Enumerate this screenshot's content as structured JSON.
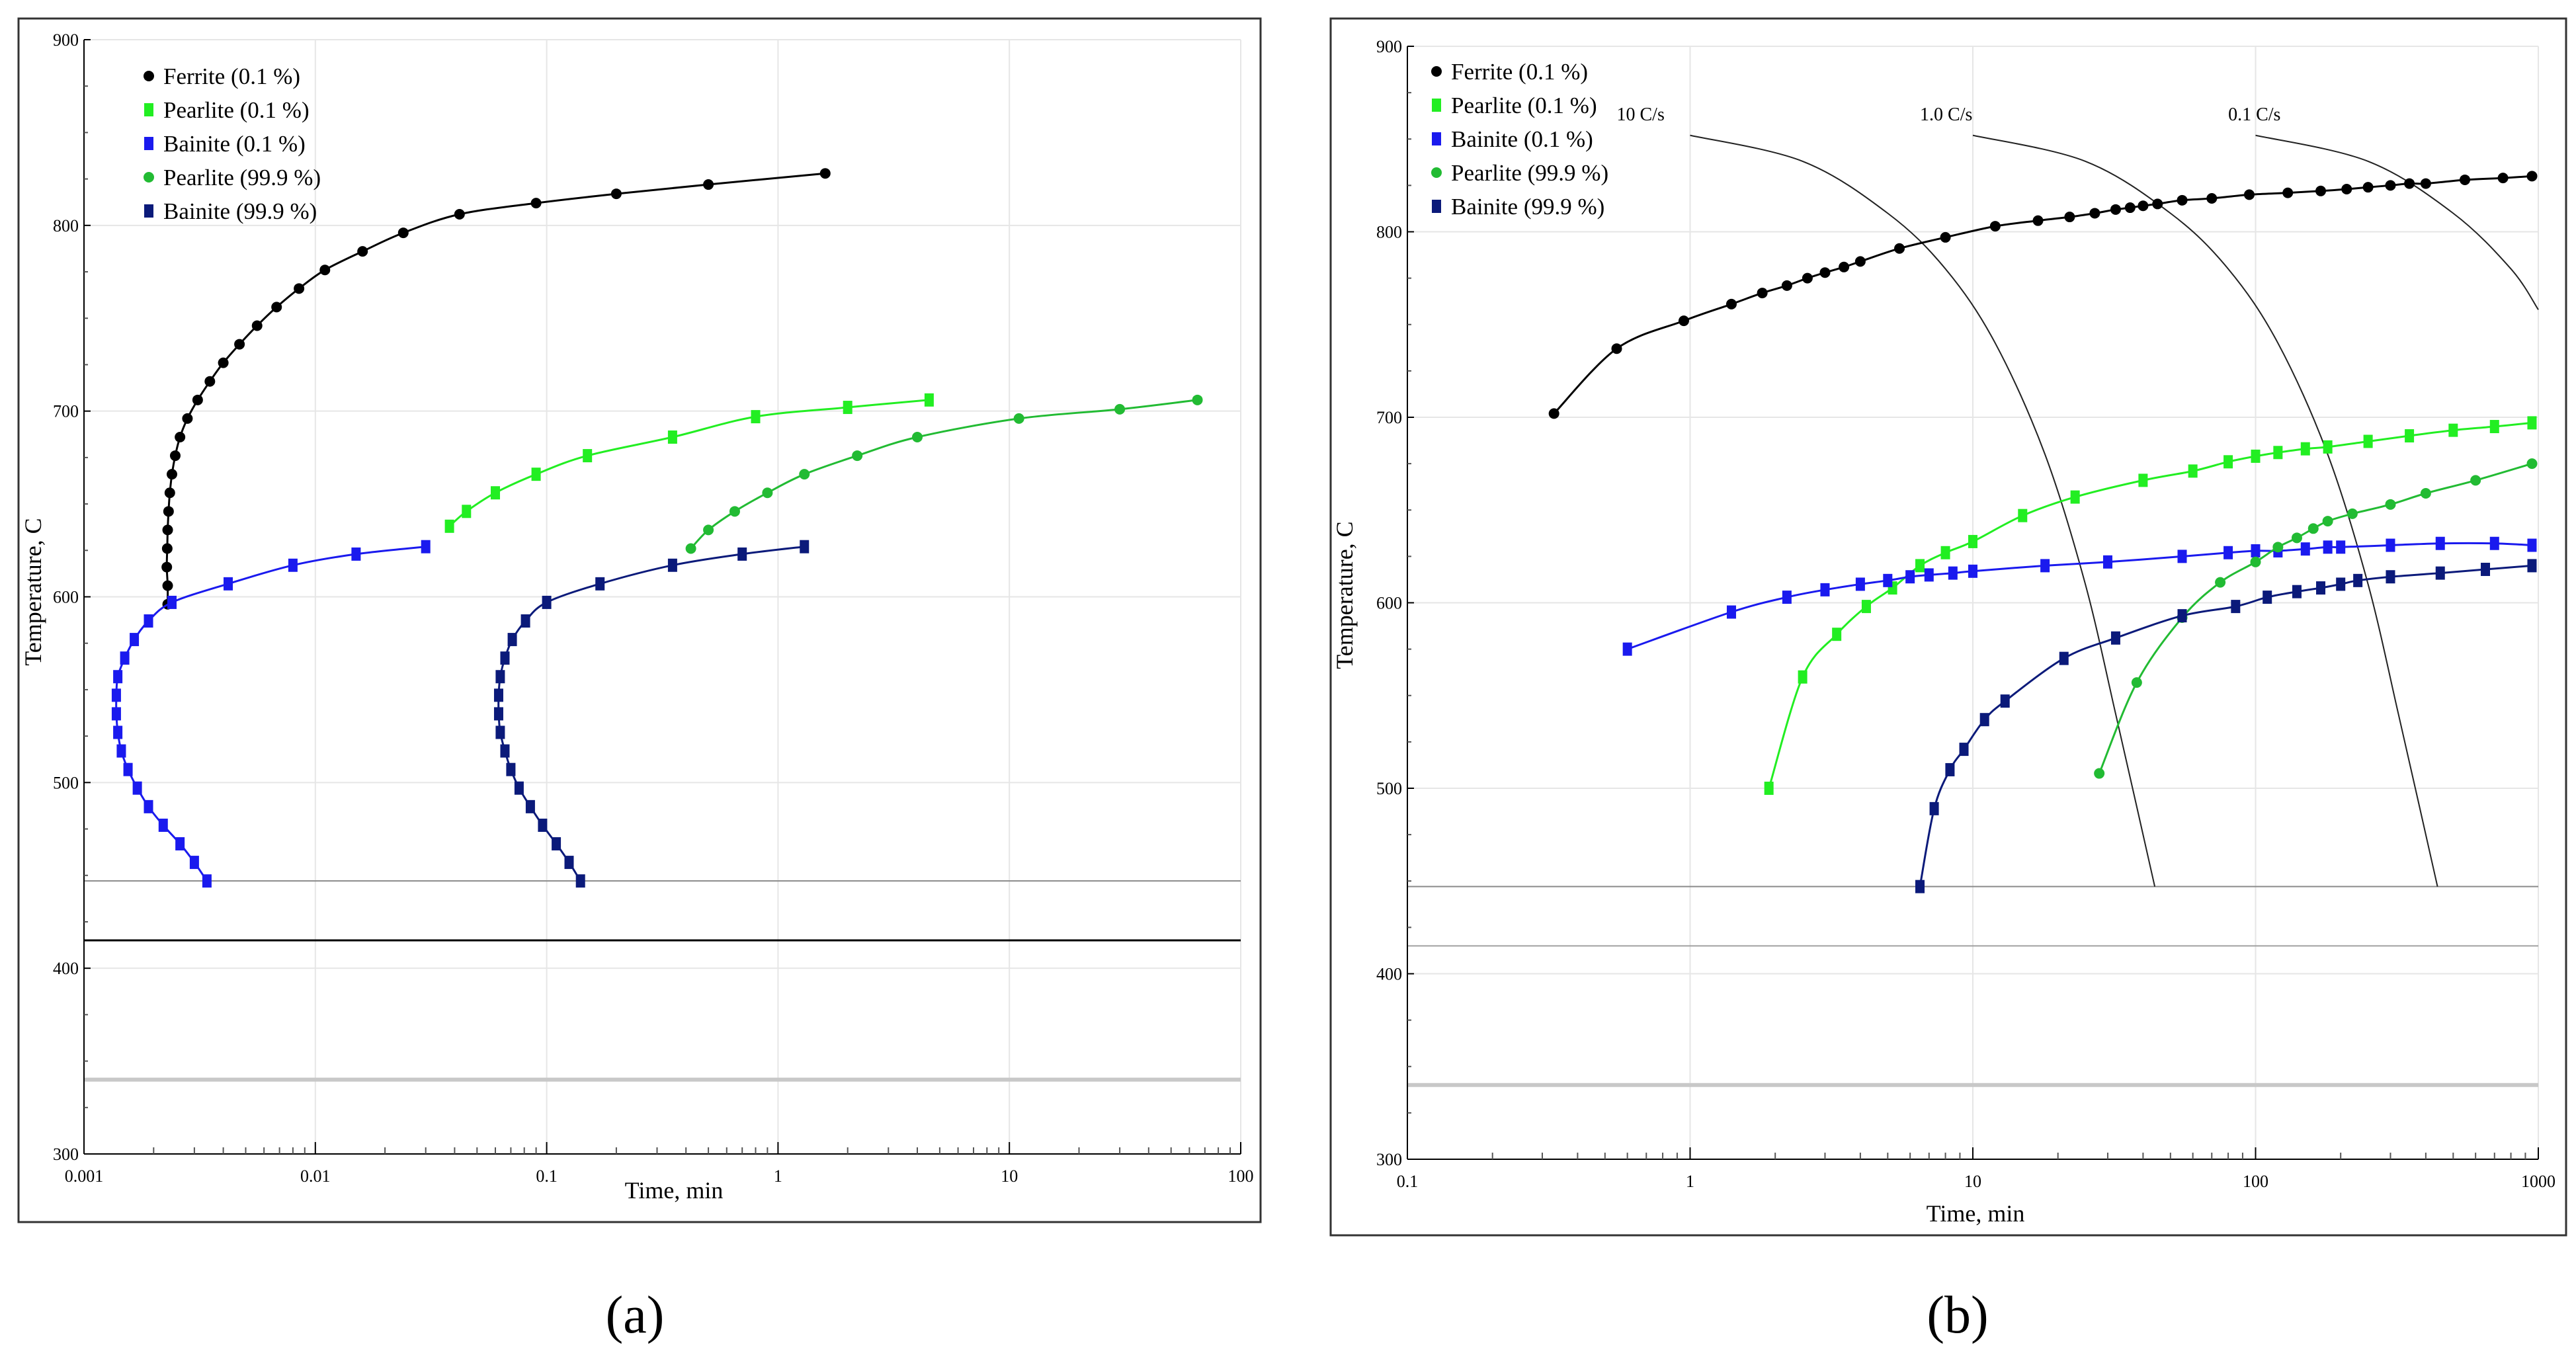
{
  "chart_data": [
    {
      "type": "scatter",
      "panel_label": "(a)",
      "xlabel": "Time, min",
      "ylabel": "Temperature, C",
      "xscale": "log",
      "xlim": [
        0.001,
        100
      ],
      "ylim": [
        300,
        900
      ],
      "xticks": [
        {
          "v": 0.001,
          "t": "0.001"
        },
        {
          "v": 0.01,
          "t": "0.01"
        },
        {
          "v": 0.1,
          "t": "0.1"
        },
        {
          "v": 1,
          "t": "1"
        },
        {
          "v": 10,
          "t": "10"
        },
        {
          "v": 100,
          "t": "100"
        }
      ],
      "yticks": [
        {
          "v": 300,
          "t": "300"
        },
        {
          "v": 400,
          "t": "400"
        },
        {
          "v": 500,
          "t": "500"
        },
        {
          "v": 600,
          "t": "600"
        },
        {
          "v": 700,
          "t": "700"
        },
        {
          "v": 800,
          "t": "800"
        },
        {
          "v": 900,
          "t": "900"
        }
      ],
      "hlines": [
        {
          "y": 447,
          "color": "#8a8a8a",
          "width": 2
        },
        {
          "y": 415,
          "color": "#000000",
          "width": 3
        },
        {
          "y": 340,
          "color": "#c8c8c8",
          "width": 6
        }
      ],
      "series": [
        {
          "name": "Ferrite (0.1 %)",
          "color": "#000000",
          "marker": "circle",
          "points": [
            [
              0.0023,
              596
            ],
            [
              0.0023,
              606
            ],
            [
              0.00228,
              616
            ],
            [
              0.00229,
              626
            ],
            [
              0.0023,
              636
            ],
            [
              0.00232,
              646
            ],
            [
              0.00235,
              656
            ],
            [
              0.0024,
              666
            ],
            [
              0.00248,
              676
            ],
            [
              0.0026,
              686
            ],
            [
              0.0028,
              696
            ],
            [
              0.0031,
              706
            ],
            [
              0.0035,
              716
            ],
            [
              0.004,
              726
            ],
            [
              0.0047,
              736
            ],
            [
              0.0056,
              746
            ],
            [
              0.0068,
              756
            ],
            [
              0.0085,
              766
            ],
            [
              0.011,
              776
            ],
            [
              0.016,
              786
            ],
            [
              0.024,
              796
            ],
            [
              0.042,
              806
            ],
            [
              0.09,
              812
            ],
            [
              0.2,
              817
            ],
            [
              0.5,
              822
            ],
            [
              1.6,
              828
            ]
          ]
        },
        {
          "name": "Pearlite (0.1 %)",
          "color": "#22ee22",
          "marker": "square",
          "points": [
            [
              0.038,
              638
            ],
            [
              0.045,
              646
            ],
            [
              0.06,
              656
            ],
            [
              0.09,
              666
            ],
            [
              0.15,
              676
            ],
            [
              0.35,
              686
            ],
            [
              0.8,
              697
            ],
            [
              2.0,
              702
            ],
            [
              4.5,
              706
            ]
          ]
        },
        {
          "name": "Bainite (0.1 %)",
          "color": "#1a1aee",
          "marker": "square",
          "points": [
            [
              0.0034,
              447
            ],
            [
              0.003,
              457
            ],
            [
              0.0026,
              467
            ],
            [
              0.0022,
              477
            ],
            [
              0.0019,
              487
            ],
            [
              0.0017,
              497
            ],
            [
              0.00155,
              507
            ],
            [
              0.00145,
              517
            ],
            [
              0.0014,
              527
            ],
            [
              0.00138,
              537
            ],
            [
              0.00138,
              547
            ],
            [
              0.0014,
              557
            ],
            [
              0.0015,
              567
            ],
            [
              0.00165,
              577
            ],
            [
              0.0019,
              587
            ],
            [
              0.0024,
              597
            ],
            [
              0.0042,
              607
            ],
            [
              0.008,
              617
            ],
            [
              0.015,
              623
            ],
            [
              0.03,
              627
            ]
          ]
        },
        {
          "name": "Pearlite (99.9 %)",
          "color": "#22bb33",
          "marker": "circle",
          "points": [
            [
              0.42,
              626
            ],
            [
              0.5,
              636
            ],
            [
              0.65,
              646
            ],
            [
              0.9,
              656
            ],
            [
              1.3,
              666
            ],
            [
              2.2,
              676
            ],
            [
              4.0,
              686
            ],
            [
              11,
              696
            ],
            [
              30,
              701
            ],
            [
              65,
              706
            ]
          ]
        },
        {
          "name": "Bainite (99.9 %)",
          "color": "#0b1a7a",
          "marker": "square",
          "points": [
            [
              0.14,
              447
            ],
            [
              0.125,
              457
            ],
            [
              0.11,
              467
            ],
            [
              0.096,
              477
            ],
            [
              0.085,
              487
            ],
            [
              0.076,
              497
            ],
            [
              0.07,
              507
            ],
            [
              0.066,
              517
            ],
            [
              0.063,
              527
            ],
            [
              0.062,
              537
            ],
            [
              0.062,
              547
            ],
            [
              0.063,
              557
            ],
            [
              0.066,
              567
            ],
            [
              0.071,
              577
            ],
            [
              0.081,
              587
            ],
            [
              0.1,
              597
            ],
            [
              0.17,
              607
            ],
            [
              0.35,
              617
            ],
            [
              0.7,
              623
            ],
            [
              1.3,
              627
            ]
          ]
        }
      ]
    },
    {
      "type": "scatter",
      "panel_label": "(b)",
      "xlabel": "Time, min",
      "ylabel": "Temperature, C",
      "xscale": "log",
      "xlim": [
        0.1,
        1000
      ],
      "ylim": [
        300,
        900
      ],
      "xticks": [
        {
          "v": 0.1,
          "t": "0.1"
        },
        {
          "v": 1,
          "t": "1"
        },
        {
          "v": 10,
          "t": "10"
        },
        {
          "v": 100,
          "t": "100"
        },
        {
          "v": 1000,
          "t": "1000"
        }
      ],
      "yticks": [
        {
          "v": 300,
          "t": "300"
        },
        {
          "v": 400,
          "t": "400"
        },
        {
          "v": 500,
          "t": "500"
        },
        {
          "v": 600,
          "t": "600"
        },
        {
          "v": 700,
          "t": "700"
        },
        {
          "v": 800,
          "t": "800"
        },
        {
          "v": 900,
          "t": "900"
        }
      ],
      "hlines": [
        {
          "y": 447,
          "color": "#8a8a8a",
          "width": 2
        },
        {
          "y": 415,
          "color": "#a0a0a0",
          "width": 2
        },
        {
          "y": 340,
          "color": "#c8c8c8",
          "width": 6
        }
      ],
      "cooling_curves": [
        {
          "label": "10 C/s",
          "label_x": 0.55,
          "label_y": 860,
          "points": [
            [
              1,
              852
            ],
            [
              2.5,
              838
            ],
            [
              5,
              810
            ],
            [
              8,
              780
            ],
            [
              12,
              740
            ],
            [
              18,
              680
            ],
            [
              25,
              610
            ],
            [
              32,
              540
            ],
            [
              38,
              490
            ],
            [
              44,
              447
            ]
          ]
        },
        {
          "label": "1.0 C/s",
          "label_x": 6.5,
          "label_y": 860,
          "points": [
            [
              10,
              852
            ],
            [
              25,
              838
            ],
            [
              50,
              810
            ],
            [
              80,
              780
            ],
            [
              120,
              740
            ],
            [
              180,
              680
            ],
            [
              250,
              610
            ],
            [
              320,
              540
            ],
            [
              380,
              490
            ],
            [
              440,
              447
            ]
          ]
        },
        {
          "label": "0.1 C/s",
          "label_x": 80,
          "label_y": 860,
          "points": [
            [
              100,
              852
            ],
            [
              250,
              838
            ],
            [
              500,
              810
            ],
            [
              800,
              780
            ],
            [
              1000,
              758
            ]
          ]
        }
      ],
      "series": [
        {
          "name": "Ferrite (0.1 %)",
          "color": "#000000",
          "marker": "circle",
          "points": [
            [
              0.33,
              702
            ],
            [
              0.55,
              737
            ],
            [
              0.95,
              752
            ],
            [
              1.4,
              761
            ],
            [
              1.8,
              767
            ],
            [
              2.2,
              771
            ],
            [
              2.6,
              775
            ],
            [
              3.0,
              778
            ],
            [
              3.5,
              781
            ],
            [
              4.0,
              784
            ],
            [
              5.5,
              791
            ],
            [
              8,
              797
            ],
            [
              12,
              803
            ],
            [
              17,
              806
            ],
            [
              22,
              808
            ],
            [
              27,
              810
            ],
            [
              32,
              812
            ],
            [
              36,
              813
            ],
            [
              40,
              814
            ],
            [
              45,
              815
            ],
            [
              55,
              817
            ],
            [
              70,
              818
            ],
            [
              95,
              820
            ],
            [
              130,
              821
            ],
            [
              170,
              822
            ],
            [
              210,
              823
            ],
            [
              250,
              824
            ],
            [
              300,
              825
            ],
            [
              350,
              826
            ],
            [
              400,
              826
            ],
            [
              550,
              828
            ],
            [
              750,
              829
            ],
            [
              950,
              830
            ]
          ]
        },
        {
          "name": "Pearlite (0.1 %)",
          "color": "#22ee22",
          "marker": "square",
          "points": [
            [
              1.9,
              500
            ],
            [
              2.5,
              560
            ],
            [
              3.3,
              583
            ],
            [
              4.2,
              598
            ],
            [
              5.2,
              608
            ],
            [
              6.5,
              620
            ],
            [
              8,
              627
            ],
            [
              10,
              633
            ],
            [
              15,
              647
            ],
            [
              23,
              657
            ],
            [
              40,
              666
            ],
            [
              60,
              671
            ],
            [
              80,
              676
            ],
            [
              100,
              679
            ],
            [
              120,
              681
            ],
            [
              150,
              683
            ],
            [
              180,
              684
            ],
            [
              250,
              687
            ],
            [
              350,
              690
            ],
            [
              500,
              693
            ],
            [
              700,
              695
            ],
            [
              950,
              697
            ]
          ]
        },
        {
          "name": "Bainite (0.1 %)",
          "color": "#1a1aee",
          "marker": "square",
          "points": [
            [
              0.6,
              575
            ],
            [
              1.4,
              595
            ],
            [
              2.2,
              603
            ],
            [
              3.0,
              607
            ],
            [
              4.0,
              610
            ],
            [
              5.0,
              612
            ],
            [
              6.0,
              614
            ],
            [
              7.0,
              615
            ],
            [
              8.5,
              616
            ],
            [
              10,
              617
            ],
            [
              18,
              620
            ],
            [
              30,
              622
            ],
            [
              55,
              625
            ],
            [
              80,
              627
            ],
            [
              100,
              628
            ],
            [
              120,
              628
            ],
            [
              150,
              629
            ],
            [
              180,
              630
            ],
            [
              200,
              630
            ],
            [
              300,
              631
            ],
            [
              450,
              632
            ],
            [
              700,
              632
            ],
            [
              950,
              631
            ]
          ]
        },
        {
          "name": "Pearlite (99.9 %)",
          "color": "#22bb33",
          "marker": "circle",
          "points": [
            [
              28,
              508
            ],
            [
              38,
              557
            ],
            [
              55,
              592
            ],
            [
              75,
              611
            ],
            [
              100,
              622
            ],
            [
              120,
              630
            ],
            [
              140,
              635
            ],
            [
              160,
              640
            ],
            [
              180,
              644
            ],
            [
              220,
              648
            ],
            [
              300,
              653
            ],
            [
              400,
              659
            ],
            [
              600,
              666
            ],
            [
              950,
              675
            ]
          ]
        },
        {
          "name": "Bainite (99.9 %)",
          "color": "#0b1a7a",
          "marker": "square",
          "points": [
            [
              6.5,
              447
            ],
            [
              7.3,
              489
            ],
            [
              8.3,
              510
            ],
            [
              9.3,
              521
            ],
            [
              11,
              537
            ],
            [
              13,
              547
            ],
            [
              21,
              570
            ],
            [
              32,
              581
            ],
            [
              55,
              593
            ],
            [
              85,
              598
            ],
            [
              110,
              603
            ],
            [
              140,
              606
            ],
            [
              170,
              608
            ],
            [
              200,
              610
            ],
            [
              230,
              612
            ],
            [
              300,
              614
            ],
            [
              450,
              616
            ],
            [
              650,
              618
            ],
            [
              950,
              620
            ]
          ]
        }
      ]
    }
  ]
}
